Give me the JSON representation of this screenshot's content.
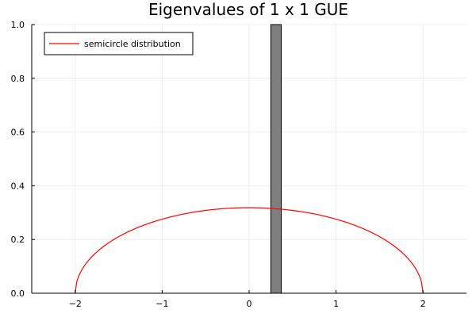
{
  "chart_data": {
    "type": "bar",
    "title": "Eigenvalues of 1 x 1 GUE",
    "xlabel": "",
    "ylabel": "",
    "xlim": [
      -2.5,
      2.5
    ],
    "ylim": [
      0,
      1
    ],
    "grid": true,
    "legend_position": "top-left",
    "x_ticks": [
      -2,
      -1,
      0,
      1,
      2
    ],
    "x_tick_labels": [
      "−2",
      "−1",
      "0",
      "1",
      "2"
    ],
    "y_ticks": [
      0,
      0.2,
      0.4,
      0.6,
      0.8,
      1.0
    ],
    "y_tick_labels": [
      "0.0",
      "0.2",
      "0.4",
      "0.6",
      "0.8",
      "1.0"
    ],
    "series": [
      {
        "kind": "histogram",
        "color": "#7f7f7f",
        "bins": [
          {
            "x0": 0.25,
            "x1": 0.37,
            "value": 1.0
          }
        ]
      },
      {
        "kind": "line",
        "name": "semicircle distribution",
        "color": "#ff0000",
        "function": "semicircle",
        "radius": 2
      }
    ]
  }
}
